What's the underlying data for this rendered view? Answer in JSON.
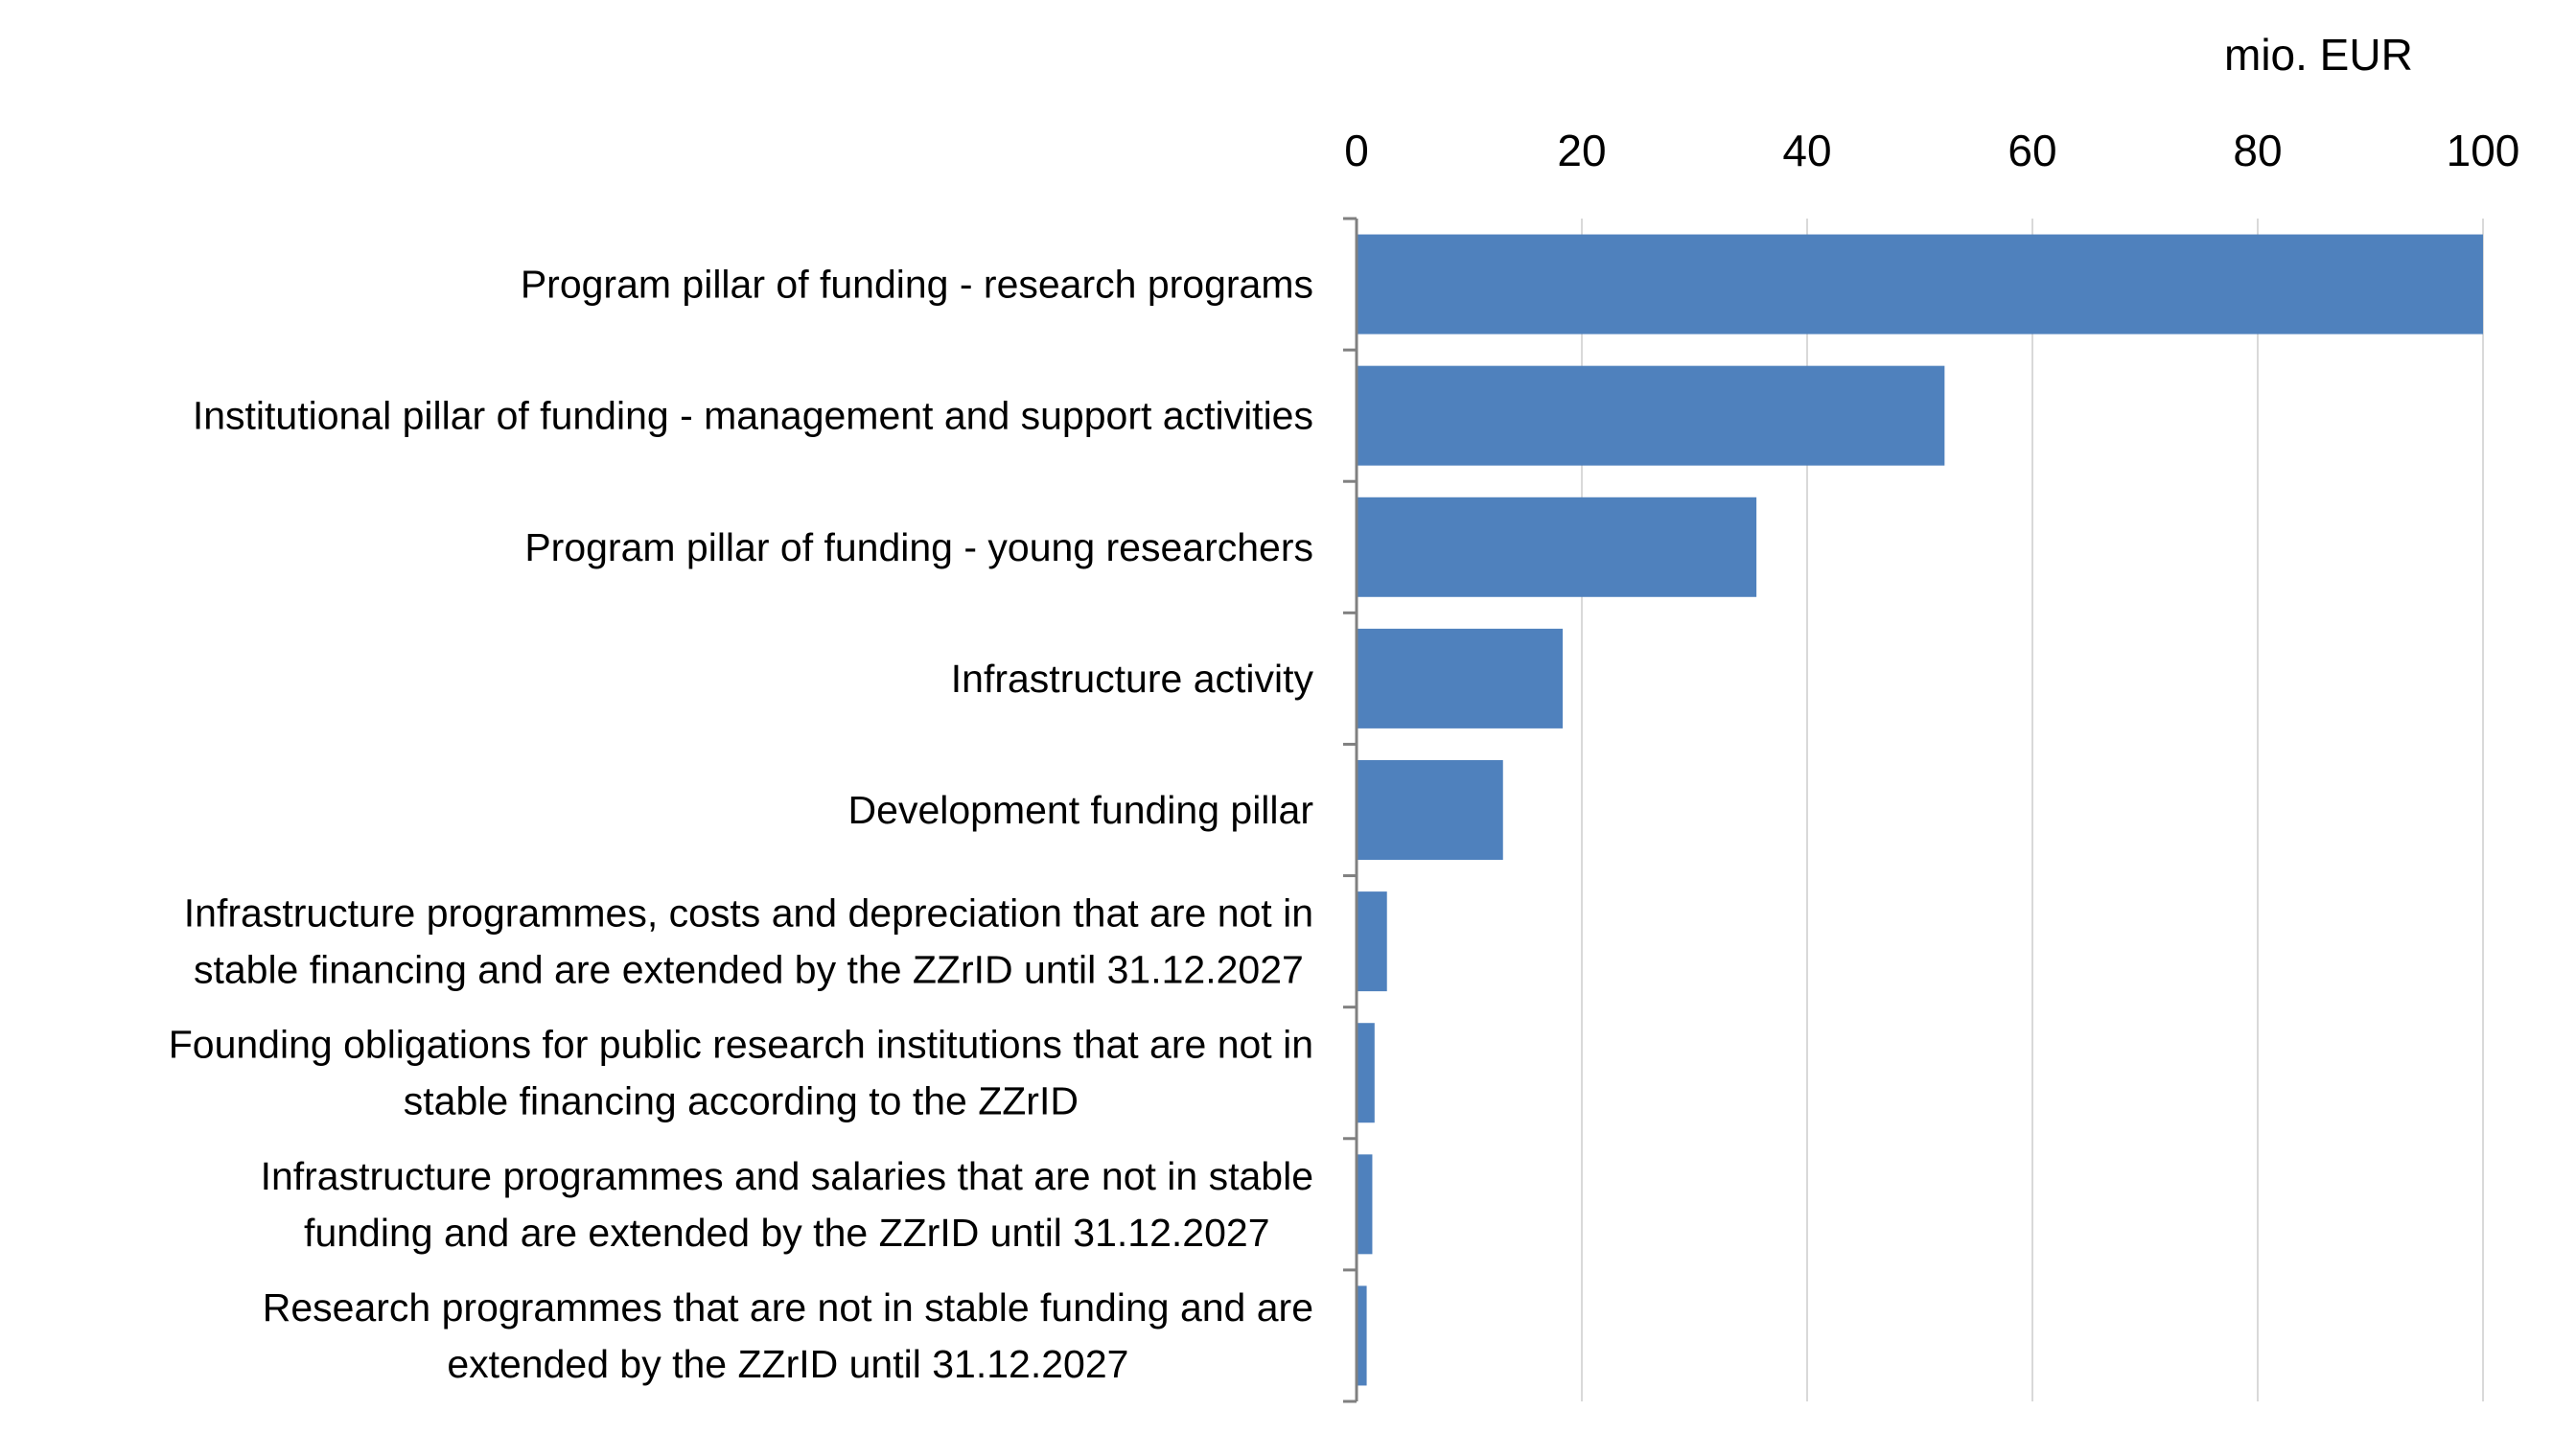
{
  "chart_data": {
    "type": "bar",
    "orientation": "horizontal",
    "unit_label": "mio. EUR",
    "xlim": [
      0,
      100
    ],
    "xticks": [
      "0",
      "20",
      "40",
      "60",
      "80",
      "100"
    ],
    "grid": true,
    "categories": [
      "Program pillar of funding -  research programs",
      "Institutional pillar of funding - management and support activities",
      "Program pillar of funding -  young researchers",
      "Infrastructure activity",
      "Development funding pillar",
      "Infrastructure programmes, costs and depreciation that are not in\nstable financing and are extended by the ZZrID until 31.12.2027",
      "Founding obligations for public research institutions that are not in\nstable financing according to the ZZrID",
      "Infrastructure programmes and salaries that are not in stable\nfunding and are extended by the ZZrID until 31.12.2027",
      "Research programmes that are not in stable funding and are\nextended by the ZZrID until 31.12.2027"
    ],
    "values": [
      100,
      52.2,
      35.5,
      18.3,
      13.0,
      2.7,
      1.6,
      1.4,
      0.9
    ],
    "colors": {
      "bar": "#4f81bd",
      "grid": "#d9d9d9",
      "axis": "#808080"
    }
  }
}
